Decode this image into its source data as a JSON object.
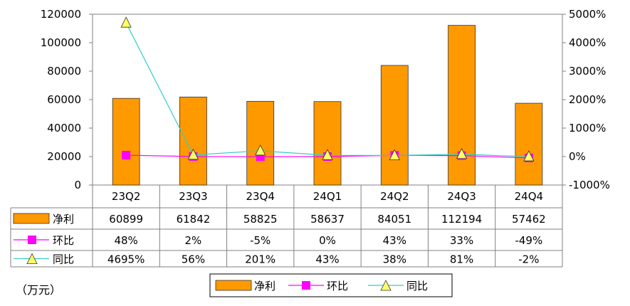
{
  "chart_data": {
    "type": "bar",
    "categories": [
      "23Q2",
      "23Q3",
      "23Q4",
      "24Q1",
      "24Q2",
      "24Q3",
      "24Q4"
    ],
    "series": [
      {
        "name": "净利",
        "type": "bar",
        "axis": "left",
        "values": [
          60899,
          61842,
          58825,
          58637,
          84051,
          112194,
          57462
        ],
        "labels": [
          "60899",
          "61842",
          "58825",
          "58637",
          "84051",
          "112194",
          "57462"
        ]
      },
      {
        "name": "环比",
        "type": "line",
        "axis": "right",
        "values": [
          48,
          2,
          -5,
          0,
          43,
          33,
          -49
        ],
        "labels": [
          "48%",
          "2%",
          "-5%",
          "0%",
          "43%",
          "33%",
          "-49%"
        ]
      },
      {
        "name": "同比",
        "type": "line",
        "axis": "right",
        "values": [
          4695,
          56,
          201,
          43,
          38,
          81,
          -2
        ],
        "labels": [
          "4695%",
          "56%",
          "201%",
          "43%",
          "38%",
          "81%",
          "-2%"
        ]
      }
    ],
    "y_left": {
      "range": [
        0,
        120000
      ],
      "ticks": [
        "0",
        "20000",
        "40000",
        "60000",
        "80000",
        "100000",
        "120000"
      ]
    },
    "y_right": {
      "range": [
        -1000,
        5000
      ],
      "ticks": [
        "-1000%",
        "0%",
        "1000%",
        "2000%",
        "3000%",
        "4000%",
        "5000%"
      ]
    },
    "unit_note": "（万元）",
    "legend": {
      "position": "bottom",
      "entries": [
        "净利",
        "环比",
        "同比"
      ]
    },
    "colors": {
      "bar": "#FF9900",
      "bar_border": "#333333",
      "qoq": "#FF00FF",
      "yoy_line": "#33CCCC",
      "yoy_marker": "#FFFF66"
    },
    "grid": false
  }
}
